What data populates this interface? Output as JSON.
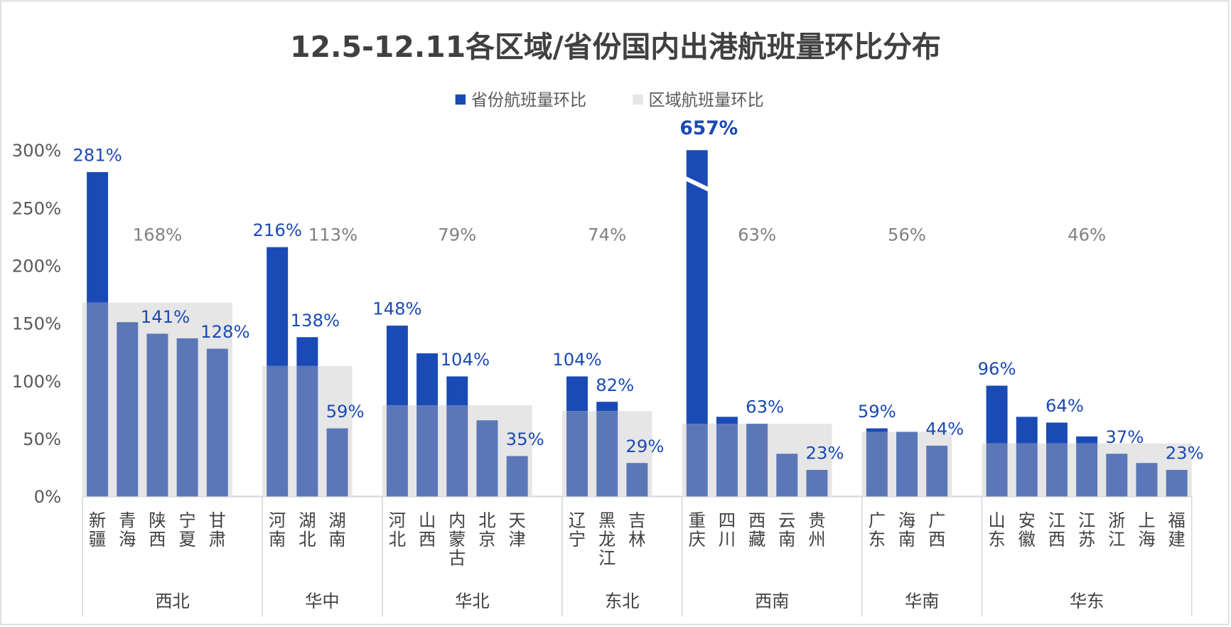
{
  "chart_data": {
    "type": "bar",
    "title": "12.5-12.11各区域/省份国内出港航班量环比分布",
    "legend": [
      "省份航班量环比",
      "区域航班量环比"
    ],
    "legend_position": "top",
    "ylim": [
      0,
      300
    ],
    "yticks": [
      "0%",
      "50%",
      "100%",
      "150%",
      "200%",
      "250%",
      "300%"
    ],
    "colors": {
      "province": "#1a4ab5",
      "province_overlap": "#5b77b8",
      "region": "#e6e6e6",
      "label_blue": "#1a4ab5",
      "label_gray": "#808080"
    },
    "groups": [
      {
        "region": "西北",
        "region_value": 168,
        "region_label": "168%",
        "provinces": [
          {
            "name": "新疆",
            "value": 281,
            "label": "281%"
          },
          {
            "name": "青海",
            "value": 151,
            "label": null
          },
          {
            "name": "陕西",
            "value": 141,
            "label": "141%"
          },
          {
            "name": "宁夏",
            "value": 137,
            "label": null
          },
          {
            "name": "甘肃",
            "value": 128,
            "label": "128%"
          }
        ]
      },
      {
        "region": "华中",
        "region_value": 113,
        "region_label": "113%",
        "provinces": [
          {
            "name": "河南",
            "value": 216,
            "label": "216%"
          },
          {
            "name": "湖北",
            "value": 138,
            "label": "138%"
          },
          {
            "name": "湖南",
            "value": 59,
            "label": "59%"
          }
        ]
      },
      {
        "region": "华北",
        "region_value": 79,
        "region_label": "79%",
        "provinces": [
          {
            "name": "河北",
            "value": 148,
            "label": "148%"
          },
          {
            "name": "山西",
            "value": 124,
            "label": null
          },
          {
            "name": "内蒙古",
            "value": 104,
            "label": "104%"
          },
          {
            "name": "北京",
            "value": 66,
            "label": null
          },
          {
            "name": "天津",
            "value": 35,
            "label": "35%"
          }
        ]
      },
      {
        "region": "东北",
        "region_value": 74,
        "region_label": "74%",
        "provinces": [
          {
            "name": "辽宁",
            "value": 104,
            "label": "104%"
          },
          {
            "name": "黑龙江",
            "value": 82,
            "label": "82%"
          },
          {
            "name": "吉林",
            "value": 29,
            "label": "29%"
          }
        ]
      },
      {
        "region": "西南",
        "region_value": 63,
        "region_label": "63%",
        "provinces": [
          {
            "name": "重庆",
            "value": 657,
            "label": "657%",
            "broken": true
          },
          {
            "name": "四川",
            "value": 69,
            "label": null
          },
          {
            "name": "西藏",
            "value": 63,
            "label": "63%"
          },
          {
            "name": "云南",
            "value": 37,
            "label": null
          },
          {
            "name": "贵州",
            "value": 23,
            "label": "23%"
          }
        ]
      },
      {
        "region": "华南",
        "region_value": 56,
        "region_label": "56%",
        "provinces": [
          {
            "name": "广东",
            "value": 59,
            "label": "59%"
          },
          {
            "name": "海南",
            "value": 56,
            "label": null
          },
          {
            "name": "广西",
            "value": 44,
            "label": "44%"
          }
        ]
      },
      {
        "region": "华东",
        "region_value": 46,
        "region_label": "46%",
        "provinces": [
          {
            "name": "山东",
            "value": 96,
            "label": "96%"
          },
          {
            "name": "安徽",
            "value": 69,
            "label": null
          },
          {
            "name": "江西",
            "value": 64,
            "label": "64%"
          },
          {
            "name": "江苏",
            "value": 52,
            "label": null
          },
          {
            "name": "浙江",
            "value": 37,
            "label": "37%"
          },
          {
            "name": "上海",
            "value": 29,
            "label": null
          },
          {
            "name": "福建",
            "value": 23,
            "label": "23%"
          }
        ]
      }
    ]
  }
}
